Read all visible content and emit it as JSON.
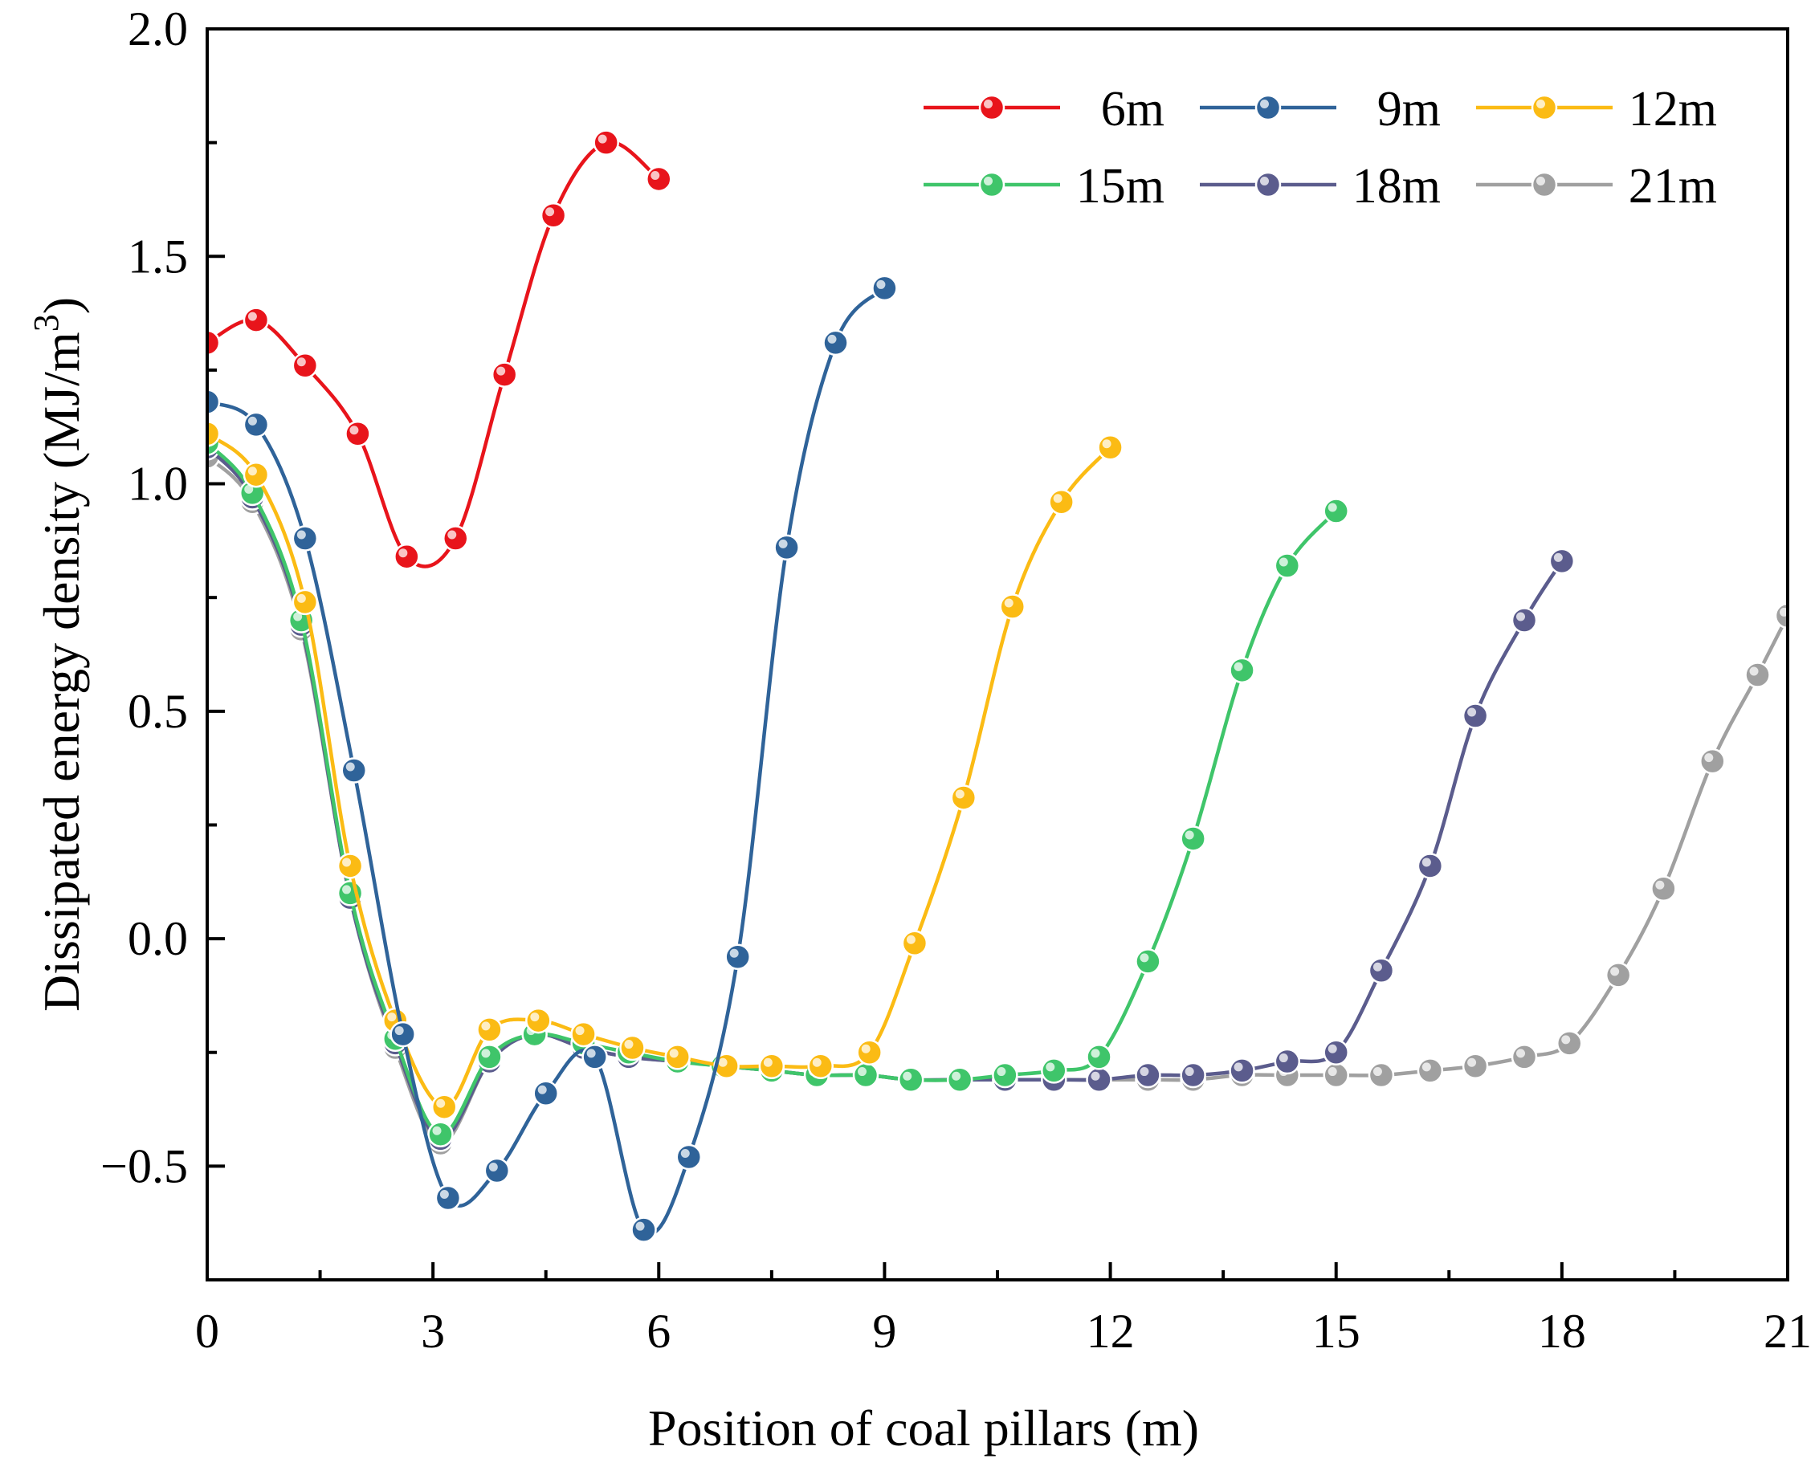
{
  "chart_data": {
    "type": "line",
    "xlabel": "Position of coal pillars (m)",
    "ylabel": "Dissipated energy density (MJ/m",
    "ylabel_sup": "3",
    "ylabel_close": ")",
    "xlim": [
      0,
      21
    ],
    "ylim": [
      -0.75,
      2.0
    ],
    "xticks": [
      0,
      3,
      6,
      9,
      12,
      15,
      18,
      21
    ],
    "xtick_labels": [
      "0",
      "3",
      "6",
      "9",
      "12",
      "15",
      "18",
      "21"
    ],
    "yticks": [
      -0.5,
      0.0,
      0.5,
      1.0,
      1.5,
      2.0
    ],
    "ytick_labels": [
      "−0.5",
      "0.0",
      "0.5",
      "1.0",
      "1.5",
      "2.0"
    ],
    "legend": {
      "placement": "top-right",
      "columns": 3
    },
    "series": [
      {
        "name": "6m",
        "color": "#e8141b",
        "x": [
          0,
          0.65,
          1.3,
          2.0,
          2.65,
          3.3,
          3.95,
          4.6,
          5.3,
          6.0
        ],
        "y": [
          1.31,
          1.36,
          1.26,
          1.11,
          0.84,
          0.88,
          1.24,
          1.59,
          1.75,
          1.67
        ]
      },
      {
        "name": "9m",
        "color": "#2f6399",
        "x": [
          0,
          0.65,
          1.3,
          1.95,
          2.6,
          3.2,
          3.85,
          4.5,
          5.15,
          5.8,
          6.4,
          7.05,
          7.7,
          8.35,
          9.0
        ],
        "y": [
          1.18,
          1.13,
          0.88,
          0.37,
          -0.21,
          -0.57,
          -0.51,
          -0.34,
          -0.26,
          -0.64,
          -0.48,
          -0.04,
          0.86,
          1.31,
          1.43
        ]
      },
      {
        "name": "12m",
        "color": "#fbbb14",
        "x": [
          0,
          0.65,
          1.3,
          1.9,
          2.5,
          3.15,
          3.75,
          4.4,
          5.0,
          5.65,
          6.25,
          6.9,
          7.5,
          8.15,
          8.8,
          9.4,
          10.05,
          10.7,
          11.35,
          12.0
        ],
        "y": [
          1.11,
          1.02,
          0.74,
          0.16,
          -0.18,
          -0.37,
          -0.2,
          -0.18,
          -0.21,
          -0.24,
          -0.26,
          -0.28,
          -0.28,
          -0.28,
          -0.25,
          -0.01,
          0.31,
          0.73,
          0.96,
          1.08
        ]
      },
      {
        "name": "15m",
        "color": "#3fc56a",
        "x": [
          0,
          0.6,
          1.25,
          1.9,
          2.5,
          3.1,
          3.75,
          4.35,
          5.0,
          5.6,
          6.25,
          6.85,
          7.5,
          8.1,
          8.75,
          9.35,
          10.0,
          10.6,
          11.25,
          11.85,
          12.5,
          13.1,
          13.75,
          14.35,
          15.0
        ],
        "y": [
          1.09,
          0.98,
          0.7,
          0.1,
          -0.22,
          -0.43,
          -0.26,
          -0.21,
          -0.23,
          -0.25,
          -0.27,
          -0.28,
          -0.29,
          -0.3,
          -0.3,
          -0.31,
          -0.31,
          -0.3,
          -0.29,
          -0.26,
          -0.05,
          0.22,
          0.59,
          0.82,
          0.94
        ]
      },
      {
        "name": "18m",
        "color": "#5b5c8d",
        "x": [
          0,
          0.6,
          1.25,
          1.9,
          2.5,
          3.1,
          3.75,
          4.35,
          5.0,
          5.6,
          6.25,
          6.85,
          7.5,
          8.1,
          8.75,
          9.35,
          10.0,
          10.6,
          11.25,
          11.85,
          12.5,
          13.1,
          13.75,
          14.35,
          15.0,
          15.6,
          16.25,
          16.85,
          17.5,
          18.0
        ],
        "y": [
          1.08,
          0.97,
          0.69,
          0.09,
          -0.23,
          -0.44,
          -0.27,
          -0.21,
          -0.24,
          -0.26,
          -0.27,
          -0.28,
          -0.29,
          -0.3,
          -0.3,
          -0.31,
          -0.31,
          -0.31,
          -0.31,
          -0.31,
          -0.3,
          -0.3,
          -0.29,
          -0.27,
          -0.25,
          -0.07,
          0.16,
          0.49,
          0.7,
          0.83
        ]
      },
      {
        "name": "21m",
        "color": "#a0a0a0",
        "x": [
          0,
          0.6,
          1.25,
          1.9,
          2.5,
          3.1,
          3.75,
          4.35,
          5.0,
          5.6,
          6.25,
          6.85,
          7.5,
          8.1,
          8.75,
          9.35,
          10.0,
          10.6,
          11.25,
          11.85,
          12.5,
          13.1,
          13.75,
          14.35,
          15.0,
          15.6,
          16.25,
          16.85,
          17.5,
          18.1,
          18.75,
          19.35,
          20.0,
          20.6,
          21.0
        ],
        "y": [
          1.06,
          0.96,
          0.68,
          0.09,
          -0.24,
          -0.45,
          -0.27,
          -0.21,
          -0.24,
          -0.26,
          -0.27,
          -0.28,
          -0.29,
          -0.3,
          -0.3,
          -0.31,
          -0.31,
          -0.31,
          -0.31,
          -0.31,
          -0.31,
          -0.31,
          -0.3,
          -0.3,
          -0.3,
          -0.3,
          -0.29,
          -0.28,
          -0.26,
          -0.23,
          -0.08,
          0.11,
          0.39,
          0.58,
          0.71
        ]
      }
    ]
  }
}
